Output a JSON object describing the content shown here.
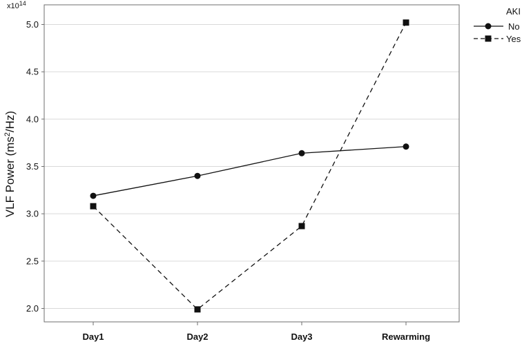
{
  "chart_data": {
    "type": "line",
    "categories": [
      "Day1",
      "Day2",
      "Day3",
      "Rewarming"
    ],
    "ylabel": "VLF Power (ms²/Hz)",
    "ylabel_main": "VLF Power (ms",
    "ylabel_sup": "2",
    "ylabel_tail": "/Hz)",
    "exponent_label": "x10",
    "exponent_sup": "14",
    "ylim": [
      1.85,
      5.25
    ],
    "yticks": [
      "2.0",
      "2.5",
      "3.0",
      "3.5",
      "4.0",
      "4.5",
      "5.0"
    ],
    "ytick_values": [
      2.0,
      2.5,
      3.0,
      3.5,
      4.0,
      4.5,
      5.0
    ],
    "grid": "horizontal",
    "legend": {
      "title": "AKI",
      "placement": "right"
    },
    "series": [
      {
        "name": "No",
        "values": [
          3.19,
          3.4,
          3.64,
          3.71
        ],
        "marker": "circle",
        "linestyle": "solid"
      },
      {
        "name": "Yes",
        "values": [
          3.08,
          1.99,
          2.87,
          5.02
        ],
        "marker": "square",
        "linestyle": "dashed"
      }
    ],
    "colors": {
      "line": "#111111",
      "grid": "#d9d9d9",
      "frame": "#6e6e6e"
    }
  }
}
